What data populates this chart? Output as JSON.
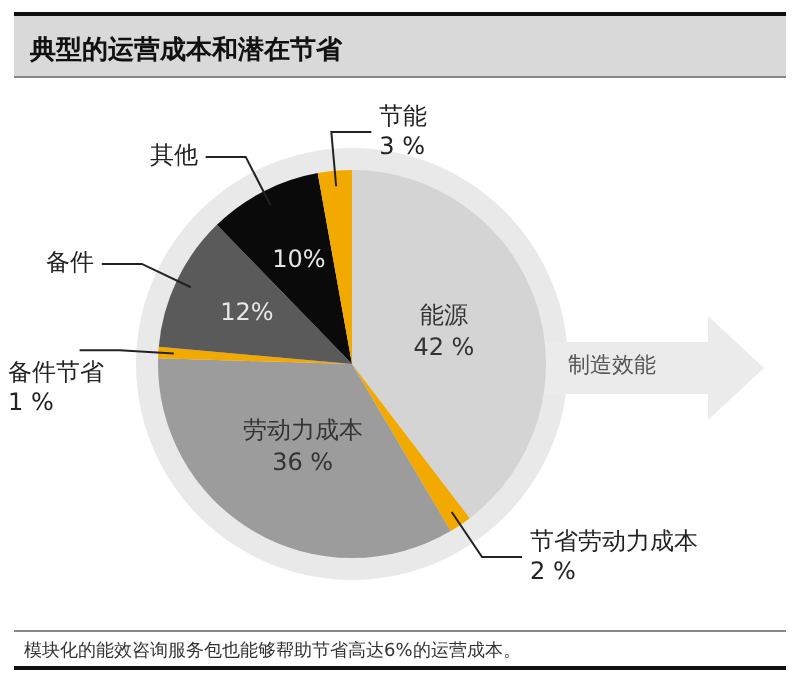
{
  "chart_data": {
    "type": "pie",
    "title": "典型的运营成本和潜在节省",
    "categories": [
      "能源",
      "节省劳动力成本",
      "劳动力成本",
      "备件节省",
      "备件",
      "其他",
      "节能"
    ],
    "values": [
      42,
      2,
      36,
      1,
      12,
      10,
      3
    ],
    "colors": [
      "#d4d4d4",
      "#f2a900",
      "#9c9c9c",
      "#f2a900",
      "#5a5a5a",
      "#0a0a0a",
      "#f2a900"
    ],
    "value_labels": [
      "42 %",
      "2 %",
      "36 %",
      "1 %",
      "12%",
      "10%",
      "3 %"
    ],
    "annotations": [
      "制造效能",
      "模块化的能效咨询服务包也能够帮助节省高达6%的运营成本。"
    ]
  }
}
